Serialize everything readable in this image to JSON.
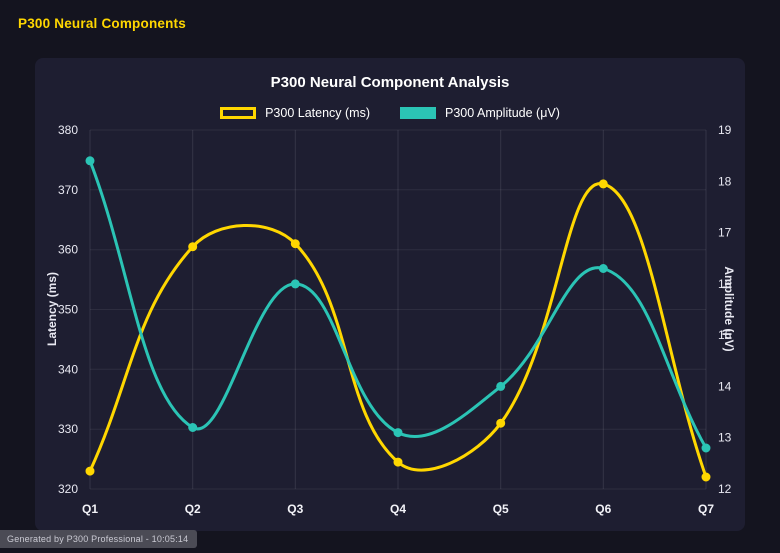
{
  "page": {
    "title": "P300 Neural Components",
    "footer": "Generated by P300 Professional - 10:05:14"
  },
  "colors": {
    "background": "#14141f",
    "card_background": "#1e1e31",
    "accent_yellow": "#ffd700",
    "accent_teal": "#2bc4b5",
    "text": "#ffffff"
  },
  "chart_data": {
    "type": "line",
    "title": "P300 Neural Component Analysis",
    "categories": [
      "Q1",
      "Q2",
      "Q3",
      "Q4",
      "Q5",
      "Q6",
      "Q7"
    ],
    "series": [
      {
        "name": "P300 Latency (ms)",
        "axis": "left",
        "color": "#ffd700",
        "legend_swatch": "outline",
        "values": [
          323,
          360.5,
          361,
          324.5,
          331,
          371,
          322
        ]
      },
      {
        "name": "P300 Amplitude (μV)",
        "axis": "right",
        "color": "#2bc4b5",
        "legend_swatch": "solid",
        "values": [
          18.4,
          13.2,
          16.0,
          13.1,
          14.0,
          16.3,
          12.8
        ]
      }
    ],
    "left_axis": {
      "label": "Latency (ms)",
      "min": 320,
      "max": 380,
      "step": 10
    },
    "right_axis": {
      "label": "Amplitude (μV)",
      "min": 12,
      "max": 19,
      "step": 1
    },
    "grid": true,
    "legend_position": "top",
    "curve": "smooth"
  }
}
